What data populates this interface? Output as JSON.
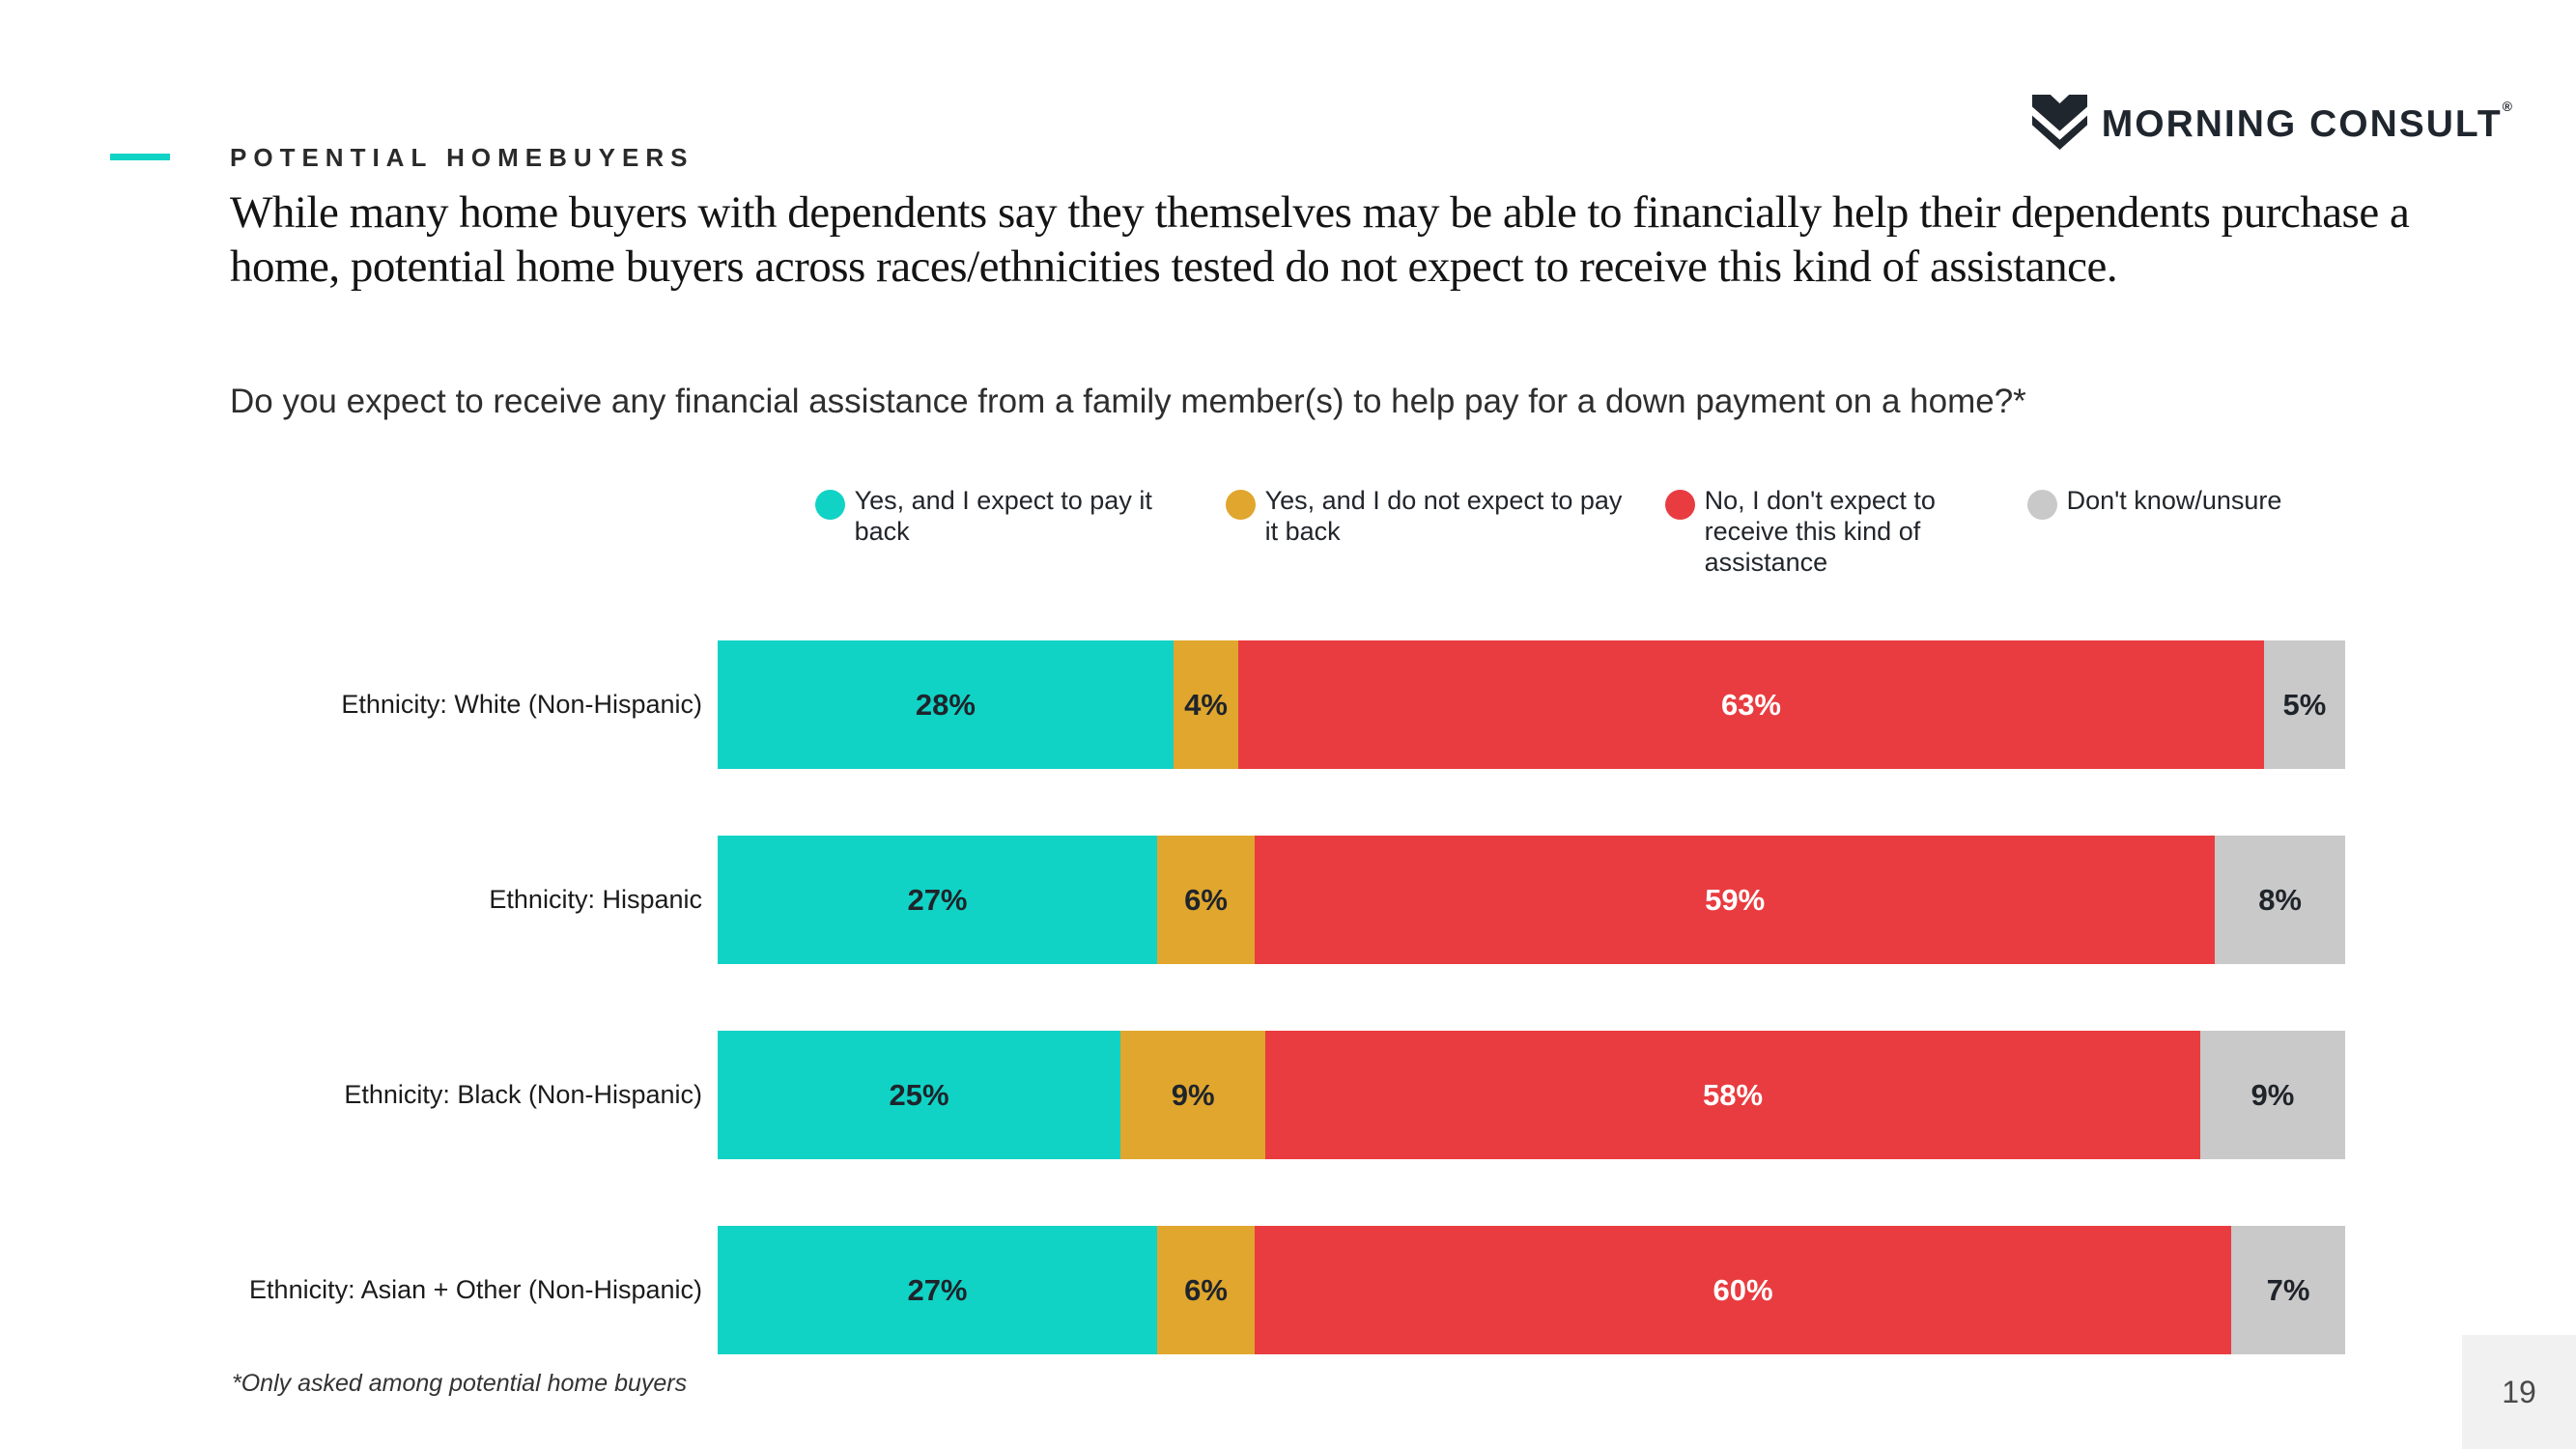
{
  "header": {
    "eyebrow": "POTENTIAL HOMEBUYERS",
    "logo_text": "MORNING CONSULT",
    "logo_mark": "®"
  },
  "title": "While many home buyers with dependents say they themselves may be able to financially help their dependents purchase a home, potential home buyers across races/ethnicities tested do not expect to receive this kind of assistance.",
  "question": "Do you expect to receive any financial assistance from a family member(s) to help pay for a down payment on a home?*",
  "footnote": "*Only asked among potential home buyers",
  "page_number": "19",
  "colors": {
    "accent_teal": "#10D3C5",
    "gold": "#E0A62D",
    "red": "#E93C40",
    "gray": "#C9C9C9",
    "logo_dark": "#20262E",
    "page_box_bg": "#F1F1F1"
  },
  "chart_data": {
    "type": "bar",
    "variant": "horizontal-stacked",
    "title": "",
    "xlabel": "",
    "ylabel": "",
    "xlim": [
      0,
      100
    ],
    "value_suffix": "%",
    "grid": false,
    "legend_position": "top-center",
    "categories": [
      "Ethnicity: White (Non-Hispanic)",
      "Ethnicity: Hispanic",
      "Ethnicity: Black (Non-Hispanic)",
      "Ethnicity: Asian + Other (Non-Hispanic)"
    ],
    "series": [
      {
        "name": "Yes, and I expect to pay it back",
        "color": "#10D3C5",
        "label_color": "#1F242B",
        "values": [
          28,
          27,
          25,
          27
        ]
      },
      {
        "name": "Yes, and I do not expect to pay it back",
        "color": "#E0A62D",
        "label_color": "#1F242B",
        "values": [
          4,
          6,
          9,
          6
        ]
      },
      {
        "name": "No, I don't expect to receive this kind of assistance",
        "color": "#E93C40",
        "label_color": "#FFFFFF",
        "values": [
          63,
          59,
          58,
          60
        ]
      },
      {
        "name": "Don't know/unsure",
        "color": "#C9C9C9",
        "label_color": "#1F242B",
        "values": [
          5,
          8,
          9,
          7
        ]
      }
    ]
  }
}
